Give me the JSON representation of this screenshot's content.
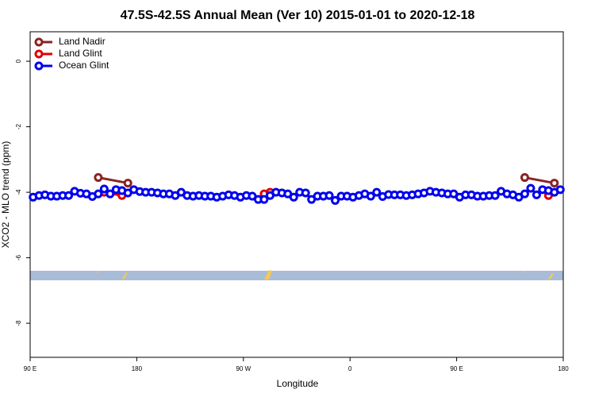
{
  "chart_data": {
    "type": "line",
    "title": "47.5S-42.5S Annual Mean (Ver 10)   2015-01-01 to 2020-12-18",
    "x_label": "Longitude",
    "y_label": "XCO2 - MLO trend (ppm)",
    "xlim": [
      90,
      540
    ],
    "ylim": [
      -9.04,
      0.9
    ],
    "xticks": [
      {
        "value": 90,
        "label": "90 E"
      },
      180,
      {
        "value": 270,
        "label": "90 W"
      },
      {
        "value": 360,
        "label": "0"
      },
      {
        "value": 450,
        "label": "90 E"
      },
      {
        "value": 540,
        "label": "180"
      }
    ],
    "yticks": [
      0,
      -2,
      -4,
      -6,
      -8
    ],
    "legend": "top-left",
    "series": [
      {
        "name": "Land Nadir",
        "color": "#8b2323",
        "x": [
          147.5,
          172.5,
          507.5,
          532.5
        ],
        "values": [
          -3.55,
          -3.72,
          -3.55,
          -3.72
        ]
      },
      {
        "name": "Land Glint",
        "color": "#e00000",
        "x": [
          152.5,
          167.5,
          287.5,
          292.5,
          527.5
        ],
        "values": [
          -4.0,
          -4.1,
          -4.05,
          -4.0,
          -4.1
        ]
      },
      {
        "name": "Ocean Glint",
        "color": "#0000ee",
        "x": [
          92.5,
          97.5,
          102.5,
          107.5,
          112.5,
          117.5,
          122.5,
          127.5,
          132.5,
          137.5,
          142.5,
          147.5,
          152.5,
          157.5,
          162.5,
          167.5,
          172.5,
          177.5,
          182.5,
          187.5,
          192.5,
          197.5,
          202.5,
          207.5,
          212.5,
          217.5,
          222.5,
          227.5,
          232.5,
          237.5,
          242.5,
          247.5,
          252.5,
          257.5,
          262.5,
          267.5,
          272.5,
          277.5,
          282.5,
          287.5,
          292.5,
          297.5,
          302.5,
          307.5,
          312.5,
          317.5,
          322.5,
          327.5,
          332.5,
          337.5,
          342.5,
          347.5,
          352.5,
          357.5,
          362.5,
          367.5,
          372.5,
          377.5,
          382.5,
          387.5,
          392.5,
          397.5,
          402.5,
          407.5,
          412.5,
          417.5,
          422.5,
          427.5,
          432.5,
          437.5,
          442.5,
          447.5,
          452.5,
          457.5,
          462.5,
          467.5,
          472.5,
          477.5,
          482.5,
          487.5,
          492.5,
          497.5,
          502.5,
          507.5,
          512.5,
          517.5,
          522.5,
          527.5,
          532.5,
          537.5
        ],
        "values": [
          -4.15,
          -4.1,
          -4.08,
          -4.12,
          -4.12,
          -4.1,
          -4.1,
          -3.97,
          -4.03,
          -4.05,
          -4.13,
          -4.05,
          -3.9,
          -4.05,
          -3.92,
          -3.95,
          -4.02,
          -3.92,
          -3.98,
          -4.0,
          -4.0,
          -4.02,
          -4.05,
          -4.05,
          -4.1,
          -4.0,
          -4.1,
          -4.12,
          -4.1,
          -4.12,
          -4.12,
          -4.15,
          -4.12,
          -4.08,
          -4.1,
          -4.15,
          -4.1,
          -4.12,
          -4.22,
          -4.22,
          -4.1,
          -4.0,
          -4.02,
          -4.05,
          -4.15,
          -4.0,
          -4.02,
          -4.22,
          -4.12,
          -4.12,
          -4.1,
          -4.25,
          -4.12,
          -4.12,
          -4.15,
          -4.1,
          -4.05,
          -4.12,
          -4.0,
          -4.13,
          -4.07,
          -4.08,
          -4.08,
          -4.1,
          -4.08,
          -4.05,
          -4.02,
          -3.97,
          -4.0,
          -4.02,
          -4.05,
          -4.05,
          -4.15,
          -4.08,
          -4.08,
          -4.12,
          -4.12,
          -4.1,
          -4.1,
          -3.97,
          -4.05,
          -4.08,
          -4.15,
          -4.05,
          -3.88,
          -4.08,
          -3.92,
          -3.95,
          -4.0,
          -3.92
        ]
      }
    ]
  }
}
